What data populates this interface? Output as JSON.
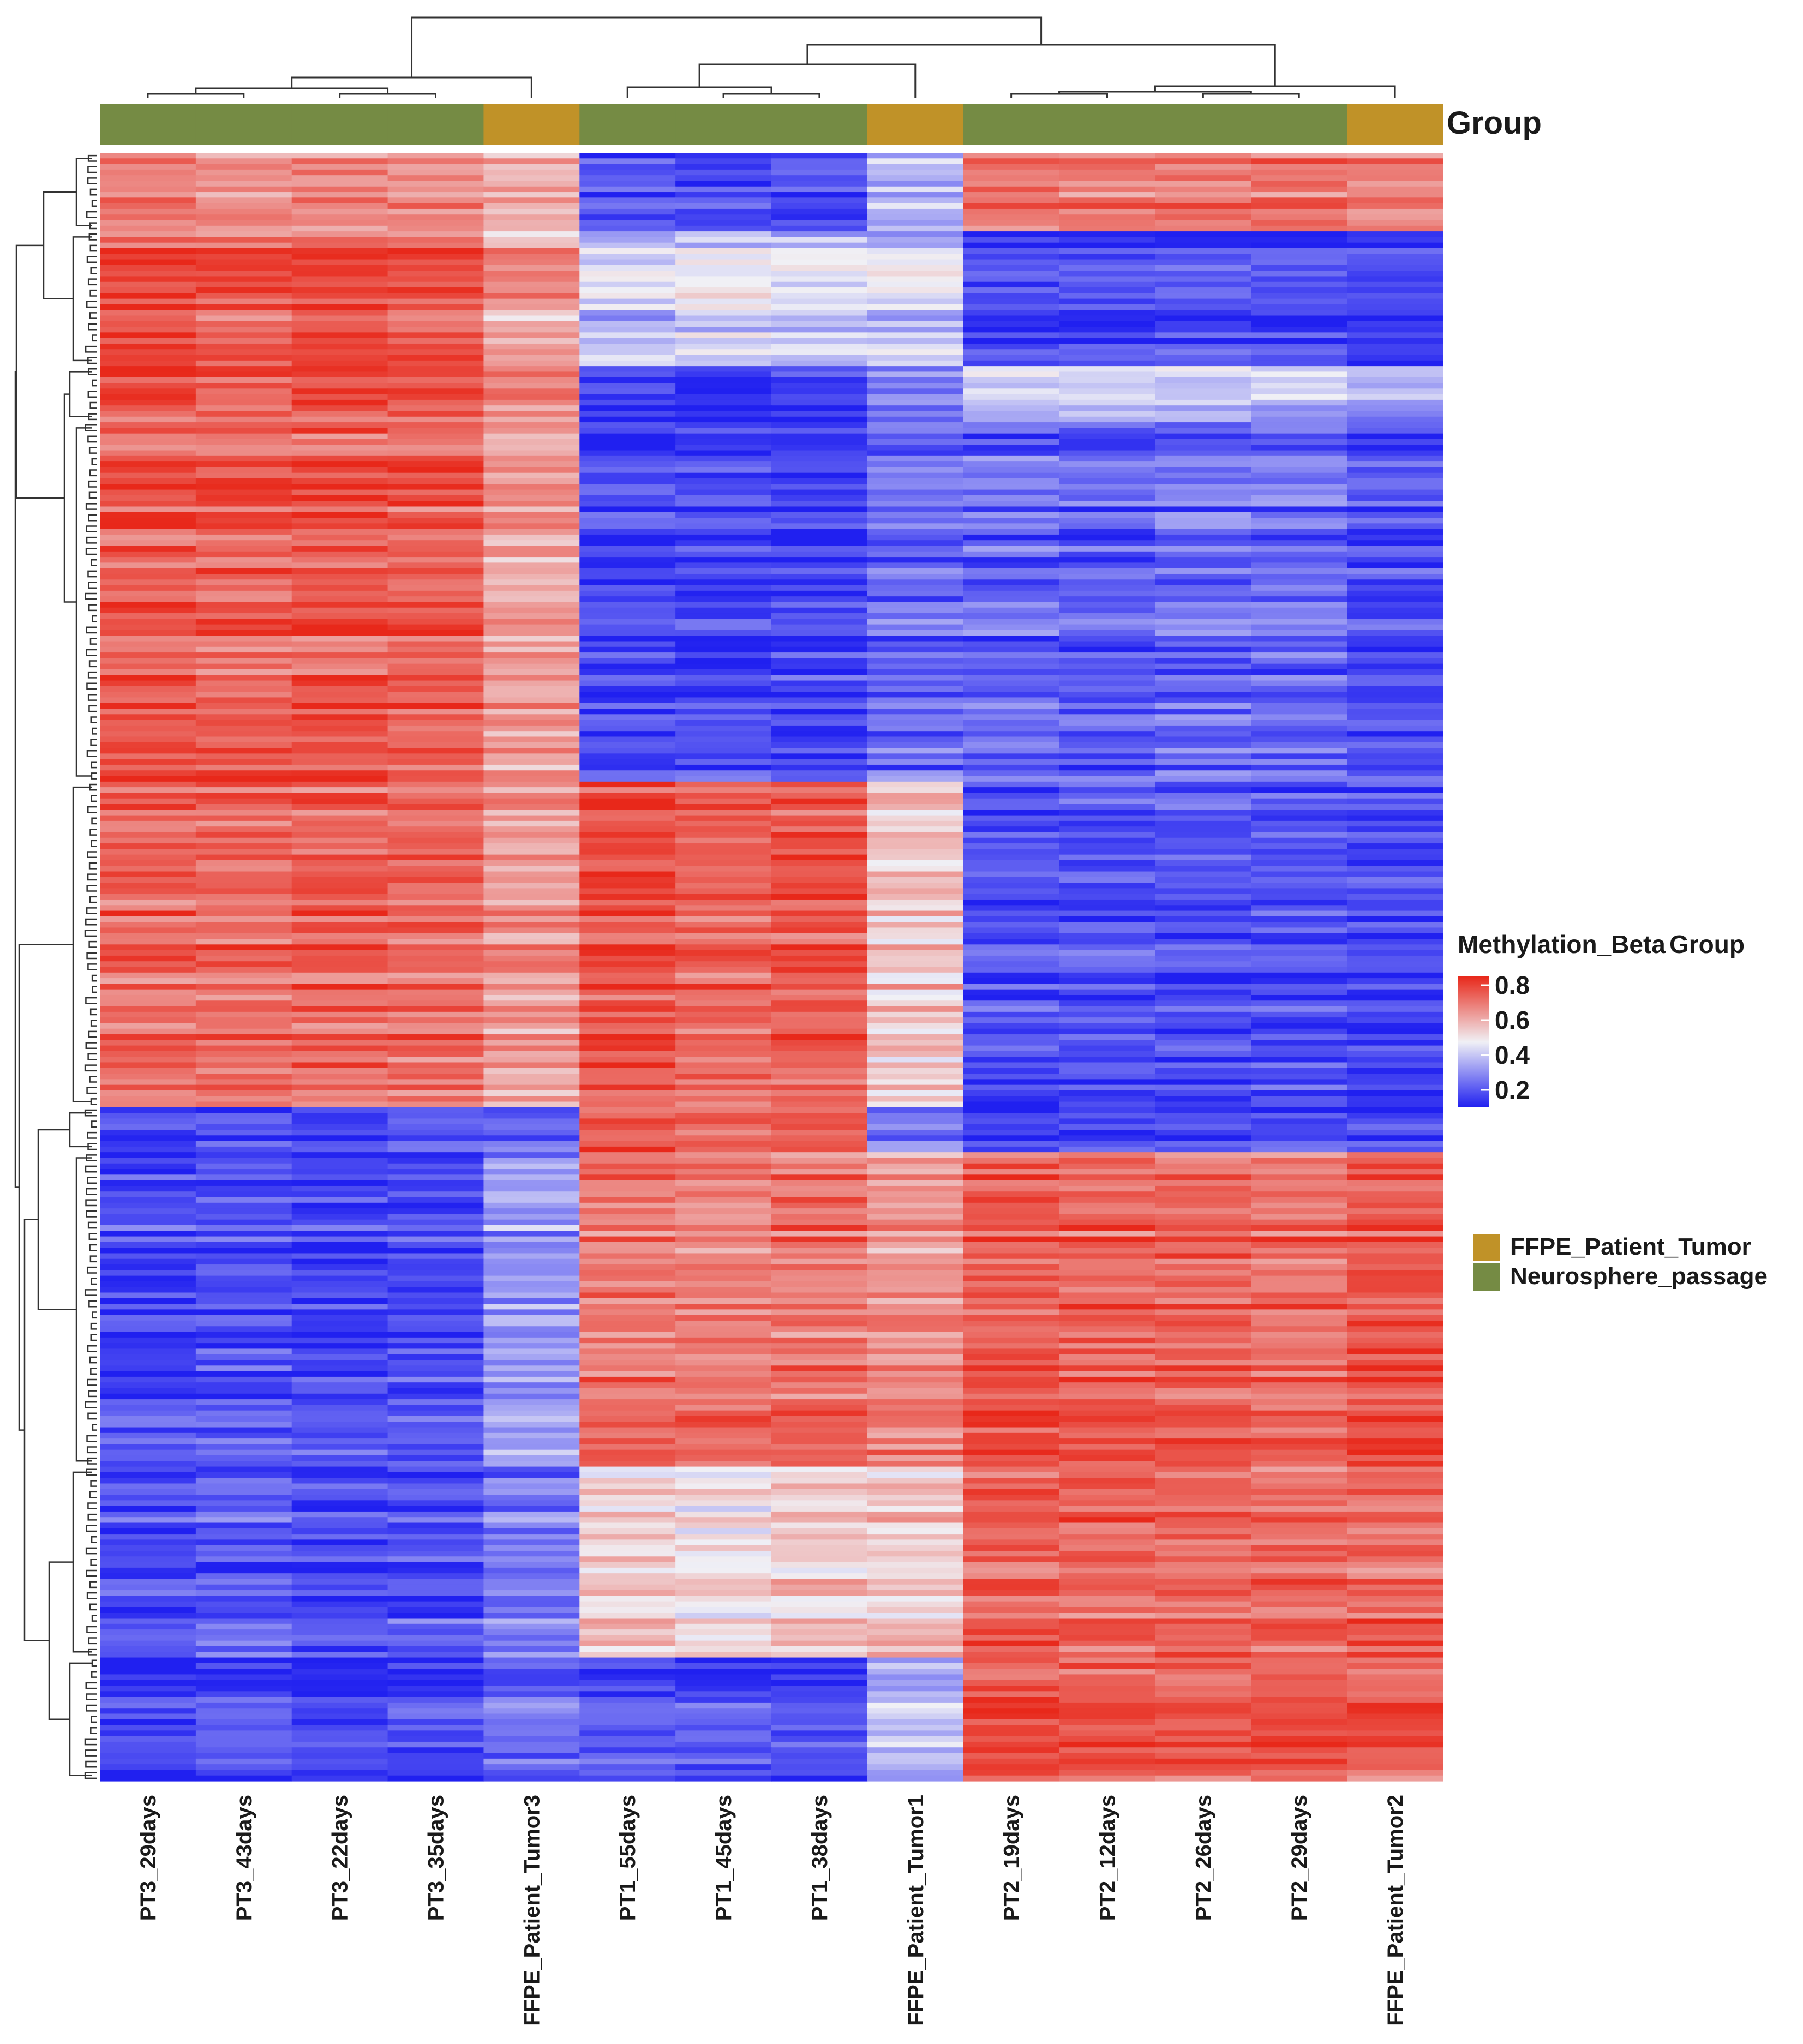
{
  "chart_data": {
    "type": "heatmap",
    "title": "",
    "annotation_title": "Group",
    "columns": [
      {
        "label": "PT3_29days",
        "group": "Neurosphere_passage"
      },
      {
        "label": "PT3_43days",
        "group": "Neurosphere_passage"
      },
      {
        "label": "PT3_22days",
        "group": "Neurosphere_passage"
      },
      {
        "label": "PT3_35days",
        "group": "Neurosphere_passage"
      },
      {
        "label": "FFPE_Patient_Tumor3",
        "group": "FFPE_Patient_Tumor"
      },
      {
        "label": "PT1_55days",
        "group": "Neurosphere_passage"
      },
      {
        "label": "PT1_45days",
        "group": "Neurosphere_passage"
      },
      {
        "label": "PT1_38days",
        "group": "Neurosphere_passage"
      },
      {
        "label": "FFPE_Patient_Tumor1",
        "group": "FFPE_Patient_Tumor"
      },
      {
        "label": "PT2_19days",
        "group": "Neurosphere_passage"
      },
      {
        "label": "PT2_12days",
        "group": "Neurosphere_passage"
      },
      {
        "label": "PT2_26days",
        "group": "Neurosphere_passage"
      },
      {
        "label": "PT2_29days",
        "group": "Neurosphere_passage"
      },
      {
        "label": "FFPE_Patient_Tumor2",
        "group": "FFPE_Patient_Tumor"
      }
    ],
    "row_blocks": [
      {
        "rows": 14,
        "values": [
          0.7,
          0.68,
          0.69,
          0.68,
          0.6,
          0.2,
          0.18,
          0.19,
          0.38,
          0.72,
          0.71,
          0.72,
          0.73,
          0.7
        ]
      },
      {
        "rows": 24,
        "values": [
          0.76,
          0.74,
          0.77,
          0.75,
          0.62,
          0.38,
          0.42,
          0.4,
          0.4,
          0.15,
          0.16,
          0.17,
          0.16,
          0.15
        ]
      },
      {
        "rows": 10,
        "values": [
          0.77,
          0.75,
          0.78,
          0.76,
          0.68,
          0.14,
          0.13,
          0.16,
          0.25,
          0.38,
          0.4,
          0.4,
          0.39,
          0.33
        ]
      },
      {
        "rows": 64,
        "values": [
          0.75,
          0.73,
          0.76,
          0.74,
          0.62,
          0.15,
          0.16,
          0.15,
          0.22,
          0.22,
          0.2,
          0.22,
          0.22,
          0.17
        ]
      },
      {
        "rows": 58,
        "values": [
          0.73,
          0.72,
          0.74,
          0.73,
          0.64,
          0.78,
          0.74,
          0.76,
          0.55,
          0.18,
          0.19,
          0.18,
          0.19,
          0.17
        ]
      },
      {
        "rows": 8,
        "values": [
          0.17,
          0.19,
          0.17,
          0.18,
          0.22,
          0.76,
          0.74,
          0.75,
          0.25,
          0.15,
          0.16,
          0.15,
          0.16,
          0.16
        ]
      },
      {
        "rows": 56,
        "values": [
          0.17,
          0.19,
          0.17,
          0.18,
          0.32,
          0.71,
          0.7,
          0.72,
          0.66,
          0.76,
          0.74,
          0.74,
          0.73,
          0.77
        ]
      },
      {
        "rows": 34,
        "values": [
          0.18,
          0.2,
          0.18,
          0.19,
          0.25,
          0.54,
          0.5,
          0.55,
          0.55,
          0.74,
          0.73,
          0.74,
          0.72,
          0.74
        ]
      },
      {
        "rows": 22,
        "values": [
          0.15,
          0.17,
          0.16,
          0.17,
          0.22,
          0.19,
          0.17,
          0.18,
          0.36,
          0.78,
          0.76,
          0.77,
          0.76,
          0.74
        ]
      }
    ],
    "row_count": 290,
    "color_scale": {
      "title": "Methylation_Beta",
      "min": 0.1,
      "max": 0.85,
      "ticks": [
        "0.8",
        "0.6",
        "0.4",
        "0.2"
      ],
      "tick_values": [
        0.8,
        0.6,
        0.4,
        0.2
      ],
      "colors": {
        "low": "#2020f0",
        "mid": "#f0f0f5",
        "high": "#e8281a"
      }
    },
    "legend": {
      "title": "Group",
      "items": [
        {
          "label": "FFPE_Patient_Tumor",
          "color": "#c09228"
        },
        {
          "label": "Neurosphere_passage",
          "color": "#758b44"
        }
      ]
    },
    "legend_position": "right",
    "column_dendrogram": true,
    "row_dendrogram": true
  }
}
